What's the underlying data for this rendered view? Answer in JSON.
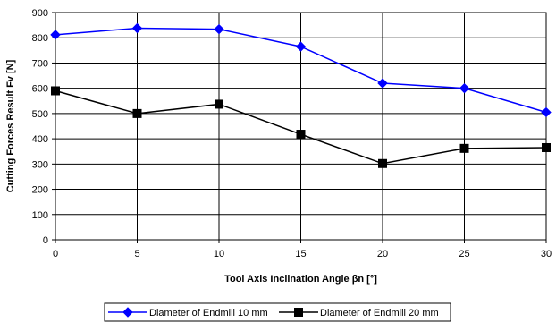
{
  "chart_data": {
    "type": "line",
    "title": "",
    "xlabel": "Tool Axis Inclination Angle βn [°]",
    "ylabel": "Cutting Forces Result Fv [N]",
    "x": [
      0,
      5,
      10,
      15,
      20,
      25,
      30
    ],
    "xlim": [
      0,
      30
    ],
    "ylim": [
      0,
      900
    ],
    "xticks": [
      0,
      5,
      10,
      15,
      20,
      25,
      30
    ],
    "yticks": [
      0,
      100,
      200,
      300,
      400,
      500,
      600,
      700,
      800,
      900
    ],
    "grid": true,
    "legend_position": "bottom",
    "series": [
      {
        "name": "Diameter of Endmill 10 mm",
        "values": [
          812,
          838,
          834,
          765,
          620,
          600,
          505
        ],
        "color": "#0000FF",
        "marker": "diamond"
      },
      {
        "name": "Diameter of Endmill 20 mm",
        "values": [
          590,
          500,
          537,
          418,
          302,
          362,
          365
        ],
        "color": "#000000",
        "marker": "square"
      }
    ]
  }
}
